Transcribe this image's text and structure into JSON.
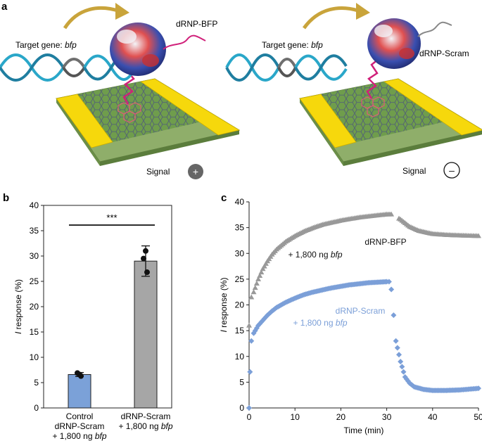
{
  "panel_labels": {
    "a": "a",
    "b": "b",
    "c": "c"
  },
  "panel_a": {
    "left": {
      "target_prefix": "Target gene: ",
      "target_gene": "bfp",
      "probe_label": "dRNP-BFP",
      "signal_label": "Signal",
      "signal_symbol": "+"
    },
    "right": {
      "target_prefix": "Target gene: ",
      "target_gene": "bfp",
      "probe_label": "dRNP-Scram",
      "signal_label": "Signal",
      "signal_symbol": "–"
    },
    "colors": {
      "dna": "#2aa7c9",
      "dna_target": "#707070",
      "electrode": "#f5d90a",
      "graphene": "#7aa84e",
      "arrow": "#c9a43b",
      "linker": "#d0207a"
    }
  },
  "chart_data": [
    {
      "type": "bar",
      "categories": [
        [
          "Control",
          "dRNP-Scram",
          "+ 1,800 ng bfp"
        ],
        [
          "dRNP-Scram",
          "+ 1,800 ng bfp"
        ]
      ],
      "values": [
        6.6,
        29.0
      ],
      "errors": [
        0.4,
        3.0
      ],
      "points": [
        [
          6.6,
          6.9,
          6.3
        ],
        [
          31.0,
          29.5,
          26.8
        ]
      ],
      "colors": [
        "#7ba1d8",
        "#a6a6a6"
      ],
      "significance": "***",
      "ylabel_italic": "I",
      "ylabel": " response (%)",
      "ylim": [
        0,
        40
      ],
      "yticks": [
        0,
        5,
        10,
        15,
        20,
        25,
        30,
        35,
        40
      ]
    },
    {
      "type": "scatter",
      "xlabel": "Time (min)",
      "ylabel_italic": "I",
      "ylabel": " response (%)",
      "xlim": [
        0,
        50
      ],
      "ylim": [
        0,
        40
      ],
      "xticks": [
        0,
        10,
        20,
        30,
        40,
        50
      ],
      "yticks": [
        0,
        5,
        10,
        15,
        20,
        25,
        30,
        35,
        40
      ],
      "series": [
        {
          "name": "dRNP-BFP",
          "name_line2_prefix": "+ 1,800 ng ",
          "name_line2_gene": "bfp",
          "color": "#999999",
          "marker": "triangle",
          "x": [
            0,
            0.5,
            1,
            2,
            3,
            4,
            5,
            6,
            8,
            10,
            12,
            14,
            16,
            18,
            20,
            22,
            24,
            26,
            28,
            30,
            31,
            33,
            35,
            37,
            40,
            43,
            46,
            50
          ],
          "y": [
            16,
            21.5,
            22.5,
            25,
            27,
            28.5,
            29.8,
            30.8,
            32.3,
            33.4,
            34.3,
            35,
            35.6,
            36,
            36.4,
            36.7,
            37,
            37.2,
            37.4,
            37.6,
            37.6,
            36.6,
            35.2,
            34.4,
            33.8,
            33.6,
            33.5,
            33.4
          ]
        },
        {
          "name": "dRNP-Scram",
          "name_line2_prefix": "+ 1,800 ng ",
          "name_line2_gene": "bfp",
          "color": "#7b9fd8",
          "marker": "diamond",
          "x": [
            0,
            0.2,
            0.5,
            1,
            2,
            3,
            4,
            5,
            6,
            8,
            10,
            12,
            14,
            16,
            18,
            20,
            22,
            24,
            26,
            28,
            30,
            30.5,
            31,
            31.5,
            32,
            33,
            34,
            35,
            36,
            38,
            40,
            43,
            46,
            50
          ],
          "y": [
            0,
            7,
            13,
            14.5,
            16,
            17,
            18,
            18.8,
            19.5,
            20.5,
            21.3,
            22,
            22.5,
            22.9,
            23.3,
            23.6,
            23.9,
            24.1,
            24.3,
            24.4,
            24.5,
            24.5,
            23,
            18,
            13,
            9,
            6,
            4.8,
            4.1,
            3.6,
            3.4,
            3.4,
            3.5,
            3.8
          ]
        }
      ]
    }
  ]
}
